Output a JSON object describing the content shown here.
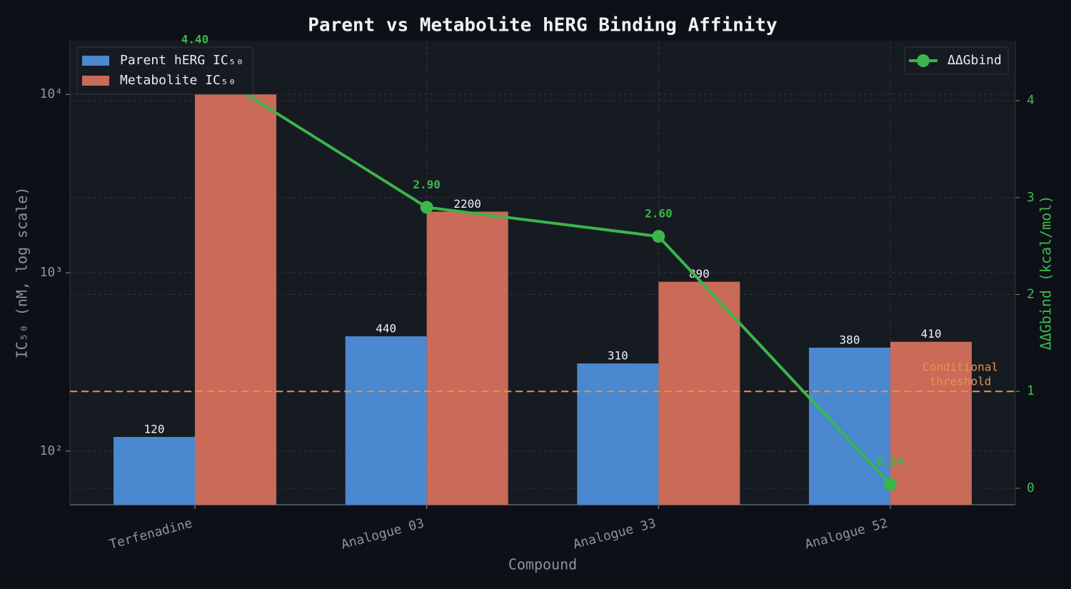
{
  "chart_data": {
    "type": "bar",
    "title": "Parent vs Metabolite hERG Binding Affinity",
    "xlabel": "Compound",
    "ylabel": "IC₅₀ (nM, log scale)",
    "y2label": "ΔΔGbind (kcal/mol)",
    "categories": [
      "Terfenadine",
      "Analogue 03",
      "Analogue 33",
      "Analogue 52"
    ],
    "series": [
      {
        "name": "Parent hERG IC₅₀",
        "color": "#4a88d0",
        "values": [
          120,
          440,
          310,
          380
        ]
      },
      {
        "name": "Metabolite IC₅₀",
        "color": "#c96b58",
        "values": [
          10000,
          2200,
          890,
          410
        ]
      },
      {
        "name": "ΔΔGbind",
        "type": "line",
        "axis": "y2",
        "color": "#3cb54a",
        "values": [
          4.4,
          2.9,
          2.6,
          0.04
        ],
        "value_labels": [
          "4.40",
          "2.90",
          "2.60",
          "0.04"
        ]
      }
    ],
    "ylog": true,
    "ylim": [
      50,
      20000
    ],
    "yticks": [
      {
        "value": 100,
        "label": "10²"
      },
      {
        "value": 1000,
        "label": "10³"
      },
      {
        "value": 10000,
        "label": "10⁴"
      }
    ],
    "y2lim": [
      -0.17,
      4.62
    ],
    "y2ticks": [
      0,
      1,
      2,
      3,
      4
    ],
    "threshold": {
      "value": 1,
      "axis": "y2",
      "color": "#e8924a",
      "label": [
        "Conditional",
        "threshold"
      ]
    },
    "grid": true,
    "legend": "upper left",
    "y2legend": "upper right"
  }
}
